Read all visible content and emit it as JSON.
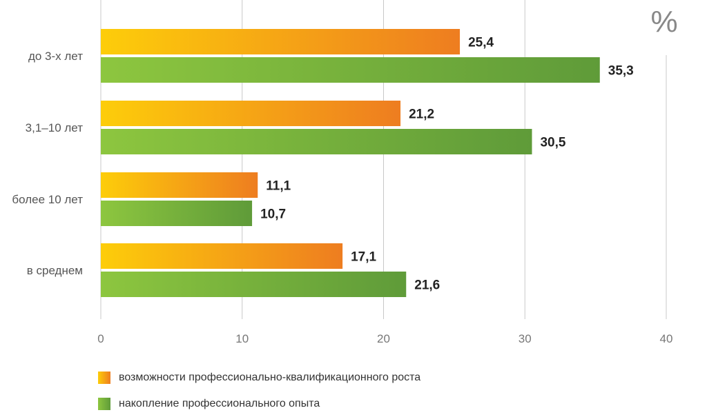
{
  "chart_data": {
    "type": "bar",
    "orientation": "horizontal",
    "unit": "%",
    "categories": [
      "до 3-х лет",
      "3,1–10 лет",
      "более 10 лет",
      "в среднем"
    ],
    "series": [
      {
        "name": "возможности профессионально-квалификационного роста",
        "values": [
          25.4,
          21.2,
          11.1,
          17.1
        ],
        "labels": [
          "25,4",
          "21,2",
          "11,1",
          "17,1"
        ],
        "color_start": "#fdcd0a",
        "color_end": "#ee7d20"
      },
      {
        "name": "накопление профессионального опыта",
        "values": [
          35.3,
          30.5,
          10.7,
          21.6
        ],
        "labels": [
          "35,3",
          "30,5",
          "10,7",
          "21,6"
        ],
        "color_start": "#8dc63f",
        "color_end": "#5f9b39"
      }
    ],
    "xlim": [
      0,
      40
    ],
    "xticks": [
      0,
      10,
      20,
      30,
      40
    ],
    "xtick_labels": [
      "0",
      "10",
      "20",
      "30",
      "40"
    ],
    "grid": true,
    "legend_position": "bottom-left"
  }
}
